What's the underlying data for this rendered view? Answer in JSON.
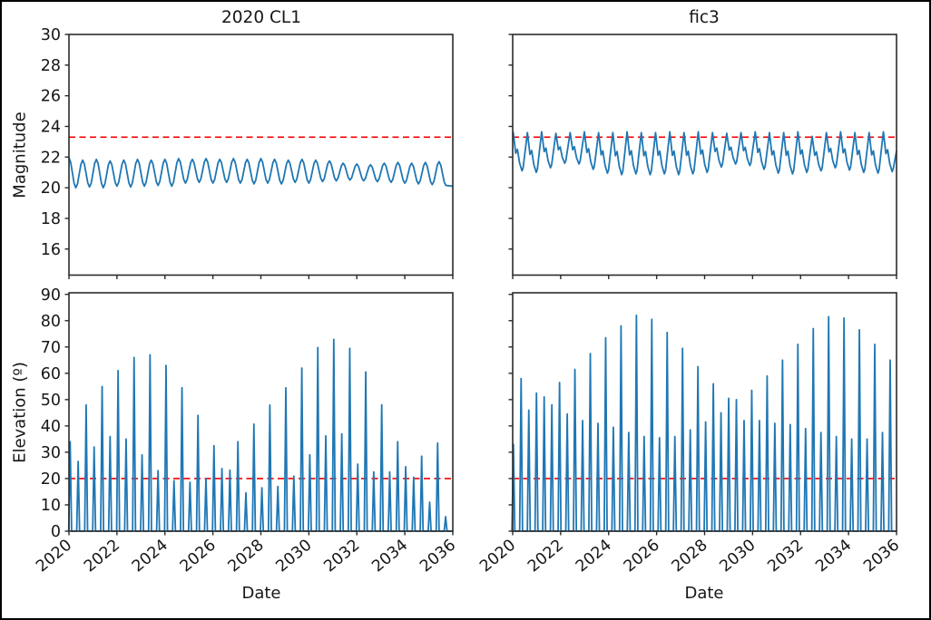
{
  "figure": {
    "background": "#ffffff",
    "border_color": "#000000"
  },
  "colors": {
    "series_blue": "#1f77b4",
    "threshold_red": "#f40000",
    "spine": "#2b2b2b",
    "tick": "#2b2b2b",
    "text": "#171717"
  },
  "titles": {
    "left": "2020 CL1",
    "right": "fic3"
  },
  "axis_labels": {
    "magnitude": "Magnitude",
    "elevation": "Elevation (º)",
    "date": "Date"
  },
  "chart_data": [
    {
      "id": "magnitude_2020cl1",
      "pos": "tl",
      "type": "line",
      "title": "2020 CL1",
      "ylabel": "Magnitude",
      "xlim": [
        2020,
        2036
      ],
      "ylim": [
        14.3,
        30
      ],
      "yticks": [
        16,
        18,
        20,
        22,
        24,
        26,
        28,
        30
      ],
      "xticks": [
        2020,
        2022,
        2024,
        2026,
        2028,
        2030,
        2032,
        2034,
        2036
      ],
      "show_ytick_labels": true,
      "show_xtick_labels": false,
      "threshold": 23.3,
      "wave": {
        "style": "smooth",
        "start": 2020.0,
        "period": 0.5714,
        "peaks": [
          21.95,
          21.8,
          21.85,
          21.75,
          21.8,
          21.85,
          21.8,
          21.85,
          21.9,
          21.85,
          21.9,
          21.85,
          21.9,
          21.85,
          21.9,
          21.85,
          21.8,
          21.85,
          21.8,
          21.75,
          21.6,
          21.55,
          21.5,
          21.6,
          21.65,
          21.6,
          21.65,
          21.7
        ],
        "mins": [
          20.0,
          20.05,
          20.0,
          20.1,
          20.05,
          20.1,
          20.15,
          20.1,
          20.3,
          20.35,
          20.3,
          20.35,
          20.3,
          20.25,
          20.3,
          20.25,
          20.35,
          20.3,
          20.4,
          20.45,
          20.5,
          20.45,
          20.4,
          20.35,
          20.3,
          20.25,
          20.2,
          20.15
        ],
        "end_point": [
          2036.0,
          20.1
        ]
      }
    },
    {
      "id": "magnitude_fic3",
      "pos": "tr",
      "type": "line",
      "title": "fic3",
      "ylabel": "",
      "xlim": [
        2020,
        2036
      ],
      "ylim": [
        14.3,
        30
      ],
      "yticks": [
        16,
        18,
        20,
        22,
        24,
        26,
        28,
        30
      ],
      "xticks": [
        2020,
        2022,
        2024,
        2026,
        2028,
        2030,
        2032,
        2034,
        2036
      ],
      "show_ytick_labels": false,
      "show_xtick_labels": false,
      "threshold": 23.3,
      "wave": {
        "style": "stepped",
        "start": 2020.02,
        "period": 0.5935,
        "peaks": [
          23.65,
          23.6,
          23.65,
          23.55,
          23.6,
          23.65,
          23.6,
          23.6,
          23.65,
          23.6,
          23.6,
          23.65,
          23.6,
          23.65,
          23.6,
          23.55,
          23.6,
          23.65,
          23.6,
          23.6,
          23.65,
          23.35,
          23.6,
          23.65,
          23.6,
          23.6,
          23.65
        ],
        "mins": [
          21.1,
          21.0,
          21.3,
          21.6,
          21.55,
          21.2,
          20.95,
          20.85,
          20.9,
          20.85,
          20.9,
          20.85,
          20.9,
          21.0,
          21.35,
          21.55,
          21.45,
          21.2,
          20.95,
          20.9,
          21.0,
          21.1,
          21.3,
          21.15,
          21.0,
          20.95,
          21.05
        ],
        "end_point": [
          2036.0,
          22.4
        ]
      }
    },
    {
      "id": "elevation_2020cl1",
      "pos": "bl",
      "type": "spikes",
      "title": "",
      "ylabel": "Elevation (º)",
      "xlabel": "Date",
      "xlim": [
        2020,
        2036
      ],
      "ylim": [
        0,
        90.6
      ],
      "yticks": [
        0,
        10,
        20,
        30,
        40,
        50,
        60,
        70,
        80,
        90
      ],
      "xticks": [
        2020,
        2022,
        2024,
        2026,
        2028,
        2030,
        2032,
        2034,
        2036
      ],
      "show_ytick_labels": true,
      "show_xtick_labels": true,
      "threshold": 20,
      "spikes": {
        "start": 2020.05,
        "step": 0.333,
        "values": [
          34,
          26.5,
          48,
          32,
          55,
          36,
          61,
          35,
          66,
          29,
          67,
          23,
          63,
          19.2,
          54.5,
          18.6,
          44,
          20,
          32.5,
          23.8,
          23.2,
          34,
          14.6,
          40.7,
          16.5,
          47.9,
          17,
          54.5,
          20.9,
          62,
          29,
          69.8,
          36.2,
          72.9,
          37,
          69.5,
          25.5,
          60.5,
          22.5,
          48,
          22.5,
          34,
          24.5,
          20.5,
          28.5,
          11,
          33.5,
          5.5
        ]
      }
    },
    {
      "id": "elevation_fic3",
      "pos": "br",
      "type": "spikes",
      "title": "",
      "ylabel": "",
      "xlabel": "Date",
      "xlim": [
        2020,
        2036
      ],
      "ylim": [
        0,
        90.6
      ],
      "yticks": [
        0,
        10,
        20,
        30,
        40,
        50,
        60,
        70,
        80,
        90
      ],
      "xticks": [
        2020,
        2022,
        2024,
        2026,
        2028,
        2030,
        2032,
        2034,
        2036
      ],
      "show_ytick_labels": false,
      "show_xtick_labels": true,
      "threshold": 20,
      "spikes": {
        "start": 2020.03,
        "step": 0.3205,
        "values": [
          33,
          58,
          46,
          52.5,
          51,
          48,
          56.5,
          44.5,
          61.5,
          42,
          67.5,
          41,
          73.5,
          39.5,
          78,
          37.5,
          82,
          36,
          80.5,
          35.5,
          75.5,
          36,
          69.5,
          38.5,
          62.5,
          41.5,
          56,
          45,
          50.5,
          50,
          42,
          53.5,
          42,
          59,
          41,
          65,
          40.5,
          71,
          39,
          77,
          37.5,
          81.5,
          36,
          81,
          35,
          76.5,
          35,
          71,
          37.5,
          65
        ]
      }
    }
  ]
}
